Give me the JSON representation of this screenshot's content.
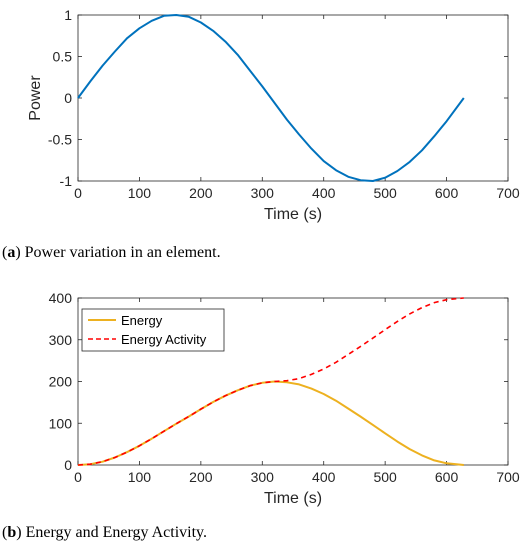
{
  "captions": [
    {
      "tag": "a",
      "text": " Power variation in an element."
    },
    {
      "tag": "b",
      "text": " Energy and Energy Activity."
    }
  ],
  "chart_data": [
    {
      "type": "line",
      "title": "",
      "xlabel": "Time (s)",
      "ylabel": "Power",
      "xlim": [
        0,
        700
      ],
      "ylim": [
        -1,
        1
      ],
      "xticks": [
        0,
        100,
        200,
        300,
        400,
        500,
        600,
        700
      ],
      "xtick_labels": [
        "0",
        "100",
        "200",
        "300",
        "400",
        "500",
        "600",
        "700"
      ],
      "yticks": [
        -1,
        -0.5,
        0,
        0.5,
        1
      ],
      "ytick_labels": [
        "-1",
        "-0.5",
        "0",
        "0.5",
        "1"
      ],
      "grid": false,
      "series": [
        {
          "color": "#0072bd",
          "style": "solid",
          "x": [
            0,
            20,
            40,
            60,
            80,
            100,
            120,
            140,
            160,
            180,
            200,
            220,
            240,
            260,
            280,
            300,
            320,
            340,
            360,
            380,
            400,
            420,
            440,
            460,
            480,
            500,
            520,
            540,
            560,
            580,
            600,
            628
          ],
          "y": [
            0,
            0.2,
            0.39,
            0.56,
            0.72,
            0.84,
            0.93,
            0.99,
            1.0,
            0.98,
            0.91,
            0.81,
            0.68,
            0.52,
            0.33,
            0.14,
            -0.06,
            -0.26,
            -0.44,
            -0.61,
            -0.76,
            -0.87,
            -0.95,
            -0.99,
            -1.0,
            -0.96,
            -0.88,
            -0.77,
            -0.63,
            -0.46,
            -0.28,
            0
          ]
        }
      ]
    },
    {
      "type": "line",
      "title": "",
      "xlabel": "Time (s)",
      "ylabel": "",
      "xlim": [
        0,
        700
      ],
      "ylim": [
        0,
        400
      ],
      "xticks": [
        0,
        100,
        200,
        300,
        400,
        500,
        600,
        700
      ],
      "xtick_labels": [
        "0",
        "100",
        "200",
        "300",
        "400",
        "500",
        "600",
        "700"
      ],
      "yticks": [
        0,
        100,
        200,
        300,
        400
      ],
      "ytick_labels": [
        "0",
        "100",
        "200",
        "300",
        "400"
      ],
      "grid": false,
      "legend": "top-left",
      "series": [
        {
          "name": "Energy",
          "color": "#edb120",
          "style": "solid",
          "x": [
            0,
            20,
            40,
            60,
            80,
            100,
            120,
            140,
            160,
            180,
            200,
            220,
            240,
            260,
            280,
            300,
            320,
            340,
            360,
            380,
            400,
            420,
            440,
            460,
            480,
            500,
            520,
            540,
            560,
            580,
            600,
            628
          ],
          "y": [
            0,
            2,
            8,
            18,
            31,
            46,
            63,
            81,
            99,
            116,
            134,
            151,
            166,
            179,
            190,
            197,
            200,
            198,
            193,
            183,
            170,
            154,
            135,
            116,
            96,
            76,
            56,
            38,
            23,
            11,
            4,
            0
          ]
        },
        {
          "name": "Energy Activity",
          "color": "#ff0000",
          "style": "dashed",
          "x": [
            0,
            20,
            40,
            60,
            80,
            100,
            120,
            140,
            160,
            180,
            200,
            220,
            240,
            260,
            280,
            300,
            320,
            340,
            360,
            380,
            400,
            420,
            440,
            460,
            480,
            500,
            520,
            540,
            560,
            580,
            600,
            628
          ],
          "y": [
            0,
            2,
            8,
            18,
            31,
            46,
            63,
            81,
            99,
            116,
            134,
            151,
            166,
            179,
            190,
            197,
            200,
            202,
            207,
            217,
            230,
            246,
            265,
            284,
            304,
            324,
            344,
            362,
            377,
            389,
            396,
            400
          ]
        }
      ]
    }
  ]
}
